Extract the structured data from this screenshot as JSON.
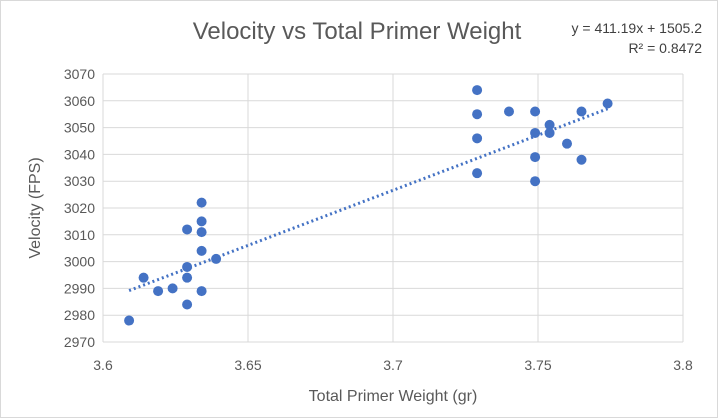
{
  "chart_data": {
    "type": "scatter",
    "title": "Velocity vs Total Primer Weight",
    "xlabel": "Total Primer Weight (gr)",
    "ylabel": "Velocity (FPS)",
    "xlim": [
      3.6,
      3.8
    ],
    "ylim": [
      2970,
      3070
    ],
    "x_ticks": [
      "3.6",
      "3.65",
      "3.7",
      "3.75",
      "3.8"
    ],
    "y_ticks": [
      "2970",
      "2980",
      "2990",
      "3000",
      "3010",
      "3020",
      "3030",
      "3040",
      "3050",
      "3060",
      "3070"
    ],
    "grid": true,
    "series": [
      {
        "color": "#4472c4",
        "points": [
          [
            3.609,
            2978
          ],
          [
            3.614,
            2994
          ],
          [
            3.619,
            2989
          ],
          [
            3.624,
            2990
          ],
          [
            3.629,
            2998
          ],
          [
            3.629,
            2994
          ],
          [
            3.629,
            2984
          ],
          [
            3.629,
            3012
          ],
          [
            3.634,
            3022
          ],
          [
            3.634,
            3015
          ],
          [
            3.634,
            3011
          ],
          [
            3.634,
            3004
          ],
          [
            3.634,
            2989
          ],
          [
            3.639,
            3001
          ],
          [
            3.729,
            3064
          ],
          [
            3.729,
            3055
          ],
          [
            3.729,
            3046
          ],
          [
            3.729,
            3033
          ],
          [
            3.74,
            3056
          ],
          [
            3.749,
            3056
          ],
          [
            3.749,
            3048
          ],
          [
            3.749,
            3039
          ],
          [
            3.749,
            3030
          ],
          [
            3.754,
            3051
          ],
          [
            3.754,
            3048
          ],
          [
            3.76,
            3044
          ],
          [
            3.765,
            3056
          ],
          [
            3.765,
            3038
          ],
          [
            3.774,
            3059
          ]
        ]
      }
    ],
    "trendline": {
      "type": "linear",
      "slope": 411.19,
      "intercept": 1505.2,
      "x_range": [
        3.609,
        3.774
      ],
      "color": "#4472c4",
      "style": "dotted",
      "equation_label": "y = 411.19x + 1505.2",
      "r2_label": "R² = 0.8472"
    }
  }
}
